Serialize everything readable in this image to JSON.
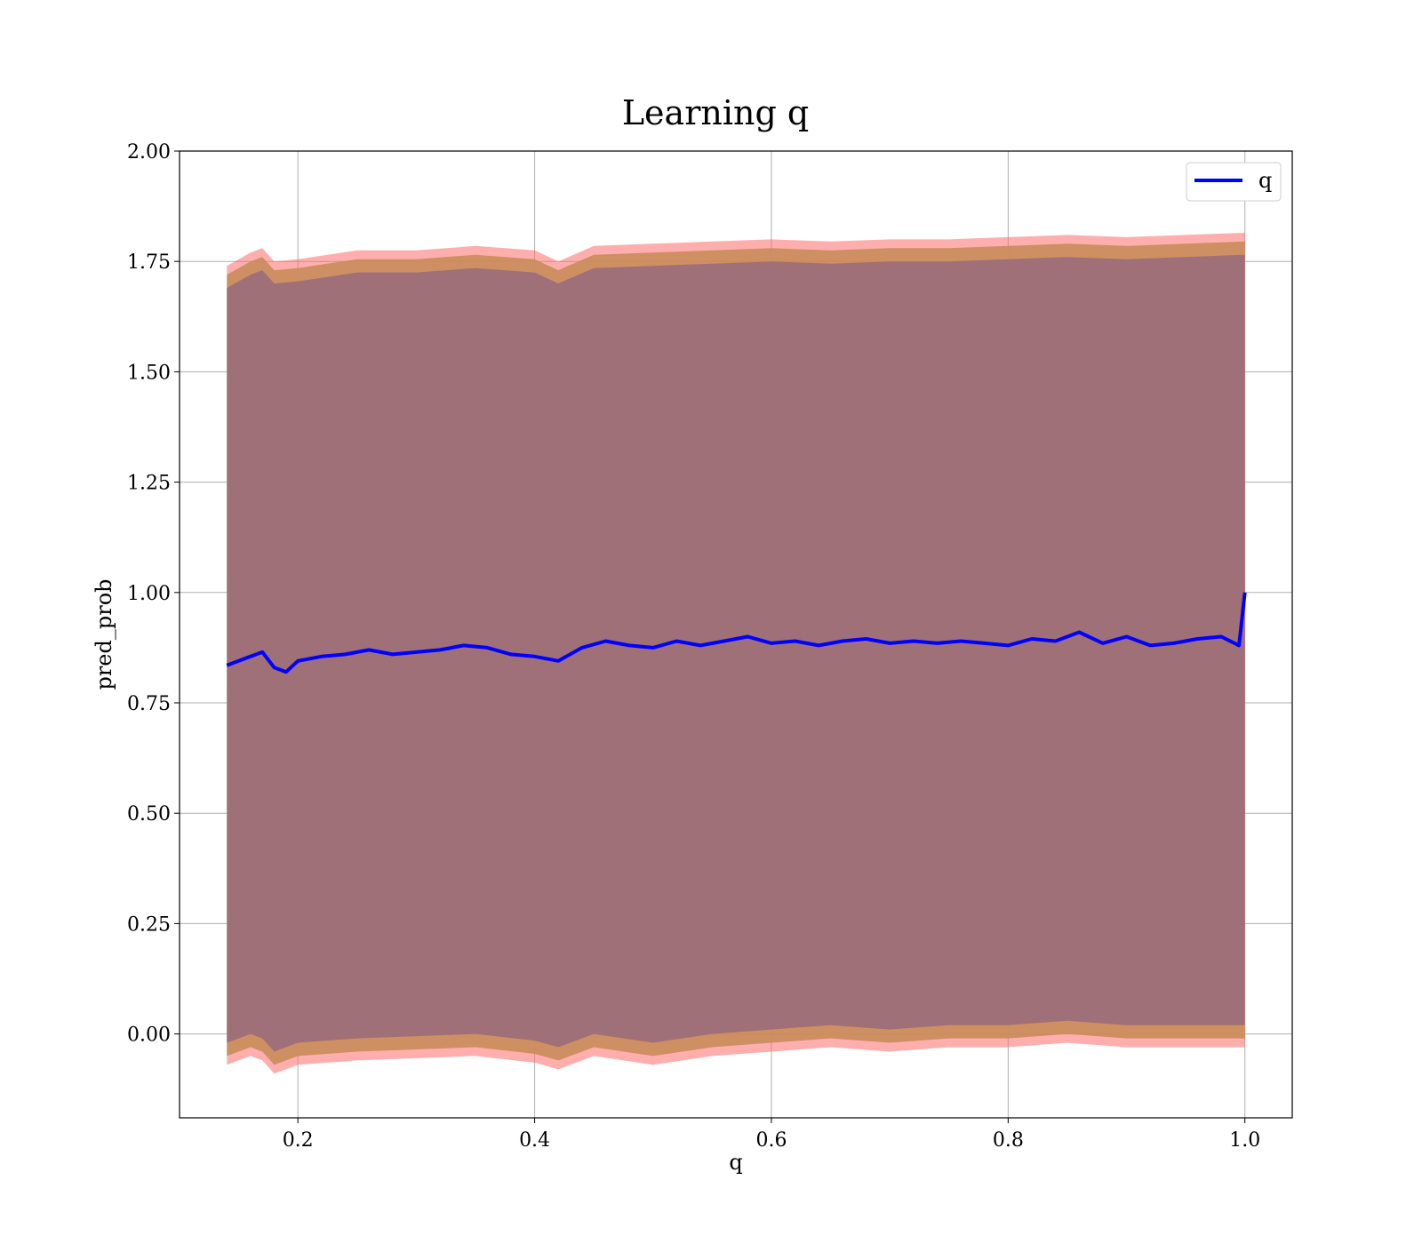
{
  "chart_data": {
    "type": "line",
    "title": "Learning q",
    "xlabel": "q",
    "ylabel": "pred_prob",
    "xlim": [
      0.1,
      1.04
    ],
    "ylim": [
      -0.19,
      2.0
    ],
    "xticks": [
      0.2,
      0.4,
      0.6,
      0.8,
      1.0
    ],
    "xtick_labels": [
      "0.2",
      "0.4",
      "0.6",
      "0.8",
      "1.0"
    ],
    "yticks": [
      0.0,
      0.25,
      0.5,
      0.75,
      1.0,
      1.25,
      1.5,
      1.75,
      2.0
    ],
    "ytick_labels": [
      "0.00",
      "0.25",
      "0.50",
      "0.75",
      "1.00",
      "1.25",
      "1.50",
      "1.75",
      "2.00"
    ],
    "grid": true,
    "legend": {
      "position": "top-right",
      "entries": [
        "q"
      ]
    },
    "colors": {
      "line": "#0000ff",
      "band_outer": "#ff6b6b",
      "band_mid": "#c98c5a",
      "band_inner": "#7a4a63",
      "fill_main": "#a07078"
    },
    "series": [
      {
        "name": "q",
        "x": [
          0.14,
          0.16,
          0.17,
          0.18,
          0.19,
          0.2,
          0.22,
          0.24,
          0.26,
          0.28,
          0.3,
          0.32,
          0.34,
          0.36,
          0.38,
          0.4,
          0.42,
          0.44,
          0.46,
          0.48,
          0.5,
          0.52,
          0.54,
          0.56,
          0.58,
          0.6,
          0.62,
          0.64,
          0.66,
          0.68,
          0.7,
          0.72,
          0.74,
          0.76,
          0.78,
          0.8,
          0.82,
          0.84,
          0.86,
          0.88,
          0.9,
          0.92,
          0.94,
          0.96,
          0.98,
          0.995,
          1.0
        ],
        "y": [
          0.835,
          0.855,
          0.865,
          0.83,
          0.82,
          0.845,
          0.855,
          0.86,
          0.87,
          0.86,
          0.865,
          0.87,
          0.88,
          0.875,
          0.86,
          0.855,
          0.845,
          0.875,
          0.89,
          0.88,
          0.875,
          0.89,
          0.88,
          0.89,
          0.9,
          0.885,
          0.89,
          0.88,
          0.89,
          0.895,
          0.885,
          0.89,
          0.885,
          0.89,
          0.885,
          0.88,
          0.895,
          0.89,
          0.91,
          0.885,
          0.9,
          0.88,
          0.885,
          0.895,
          0.9,
          0.88,
          1.0
        ]
      },
      {
        "name": "upper band",
        "x": [
          0.14,
          0.16,
          0.17,
          0.18,
          0.2,
          0.25,
          0.3,
          0.35,
          0.4,
          0.42,
          0.45,
          0.5,
          0.55,
          0.6,
          0.65,
          0.7,
          0.75,
          0.8,
          0.85,
          0.9,
          0.95,
          1.0
        ],
        "y": [
          1.71,
          1.74,
          1.75,
          1.72,
          1.725,
          1.745,
          1.745,
          1.755,
          1.745,
          1.72,
          1.755,
          1.76,
          1.765,
          1.77,
          1.765,
          1.77,
          1.77,
          1.775,
          1.78,
          1.775,
          1.78,
          1.785
        ]
      },
      {
        "name": "lower band",
        "x": [
          0.14,
          0.16,
          0.17,
          0.18,
          0.2,
          0.25,
          0.3,
          0.35,
          0.4,
          0.42,
          0.45,
          0.5,
          0.55,
          0.6,
          0.65,
          0.7,
          0.75,
          0.8,
          0.85,
          0.9,
          0.95,
          1.0
        ],
        "y": [
          -0.04,
          -0.02,
          -0.03,
          -0.06,
          -0.04,
          -0.03,
          -0.025,
          -0.02,
          -0.035,
          -0.05,
          -0.02,
          -0.04,
          -0.02,
          -0.01,
          0.0,
          -0.01,
          0.0,
          0.0,
          0.01,
          0.0,
          0.0,
          0.0
        ]
      }
    ]
  }
}
